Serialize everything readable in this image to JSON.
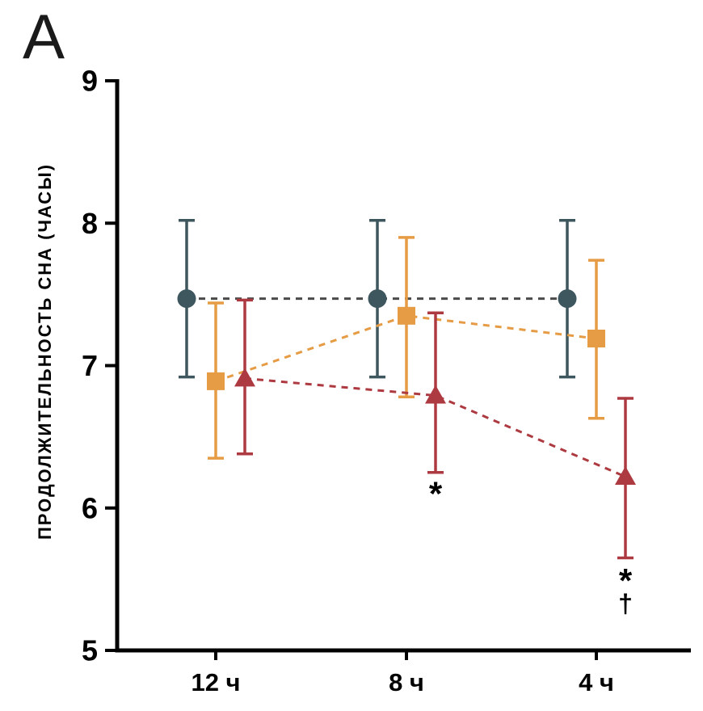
{
  "panel_label": "A",
  "chart_data": {
    "type": "line",
    "title": "",
    "xlabel": "",
    "ylabel": "ПРОДОЛЖИТЕЛЬНОСТЬ СНА (ЧАСЫ)",
    "categories": [
      "12 ч",
      "8 ч",
      "4 ч"
    ],
    "ylim": [
      5,
      9
    ],
    "yticks": [
      9,
      8,
      7,
      6,
      5
    ],
    "grid": false,
    "legend": "none",
    "line_style": "dashed",
    "series": [
      {
        "name": "dark-circle-group",
        "marker": "circle",
        "color": "#3e575f",
        "line_color": "#4a4a4a",
        "values": [
          7.47,
          7.47,
          7.47
        ],
        "err_low": [
          6.92,
          6.92,
          6.92
        ],
        "err_high": [
          8.02,
          8.02,
          8.02
        ]
      },
      {
        "name": "orange-square-group",
        "marker": "square",
        "color": "#e69b45",
        "line_color": "#e69b45",
        "values": [
          6.89,
          7.35,
          7.19
        ],
        "err_low": [
          6.35,
          6.78,
          6.63
        ],
        "err_high": [
          7.44,
          7.9,
          7.74
        ]
      },
      {
        "name": "red-triangle-group",
        "marker": "triangle",
        "color": "#ad3a40",
        "line_color": "#ad3a40",
        "values": [
          6.91,
          6.79,
          6.22
        ],
        "err_low": [
          6.38,
          6.25,
          5.65
        ],
        "err_high": [
          7.46,
          7.37,
          6.77
        ]
      }
    ],
    "annotations": [
      {
        "text": "*",
        "x_category": 1,
        "y": 6.1
      },
      {
        "text": "*",
        "x_category": 2,
        "y": 5.49
      },
      {
        "text": "†",
        "x_category": 2,
        "y": 5.33
      }
    ]
  }
}
